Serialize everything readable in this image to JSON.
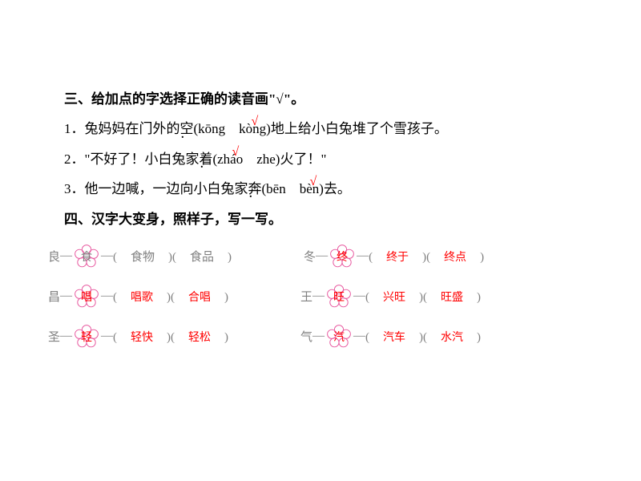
{
  "colors": {
    "text": "#000000",
    "answer": "#ff0000",
    "grey": "#808080",
    "flower_stroke": "#e85aa0",
    "background": "#ffffff"
  },
  "fonts": {
    "body": "SimSun",
    "answer": "KaiTi",
    "base_size": 17,
    "ex_size": 15
  },
  "section3": {
    "heading": "三、给加点的字选择正确的读音画\"√\"。",
    "q1_pre": "1．兔妈妈在门外的",
    "q1_char": "空",
    "q1_py_open": "(kōng　",
    "q1_py_correct": "kòng",
    "q1_py_close": ")",
    "q1_post": "地上给小白兔堆了个雪孩子。",
    "q2_pre": "2．\"不好了！小白兔家",
    "q2_char": "着",
    "q2_py_open": "(",
    "q2_py_correct": "zháo",
    "q2_py_rest": "　zhe)",
    "q2_post": "火了！\"",
    "q3_pre": "3．他一边喊，一边向小白兔家",
    "q3_char": "奔",
    "q3_py_open": "(bēn　",
    "q3_py_correct": "bèn",
    "q3_py_close": ")",
    "q3_post": "去。"
  },
  "section4": {
    "heading": "四、汉字大变身，照样子，写一写。",
    "rows": [
      {
        "left": {
          "base": "良",
          "flower": "食",
          "grey": true,
          "w1": "食物",
          "w2": "食品"
        },
        "right": {
          "base": "冬",
          "flower": "终",
          "grey": false,
          "w1": "终于",
          "w2": "终点"
        }
      },
      {
        "left": {
          "base": "昌",
          "flower": "唱",
          "grey": false,
          "w1": "唱歌",
          "w2": "合唱"
        },
        "right": {
          "base": "王",
          "flower": "旺",
          "grey": false,
          "w1": "兴旺",
          "w2": "旺盛"
        }
      },
      {
        "left": {
          "base": "圣",
          "flower": "轻",
          "grey": false,
          "w1": "轻快",
          "w2": "轻松"
        },
        "right": {
          "base": "气",
          "flower": "汽",
          "grey": false,
          "w1": "汽车",
          "w2": "水汽"
        }
      }
    ]
  }
}
